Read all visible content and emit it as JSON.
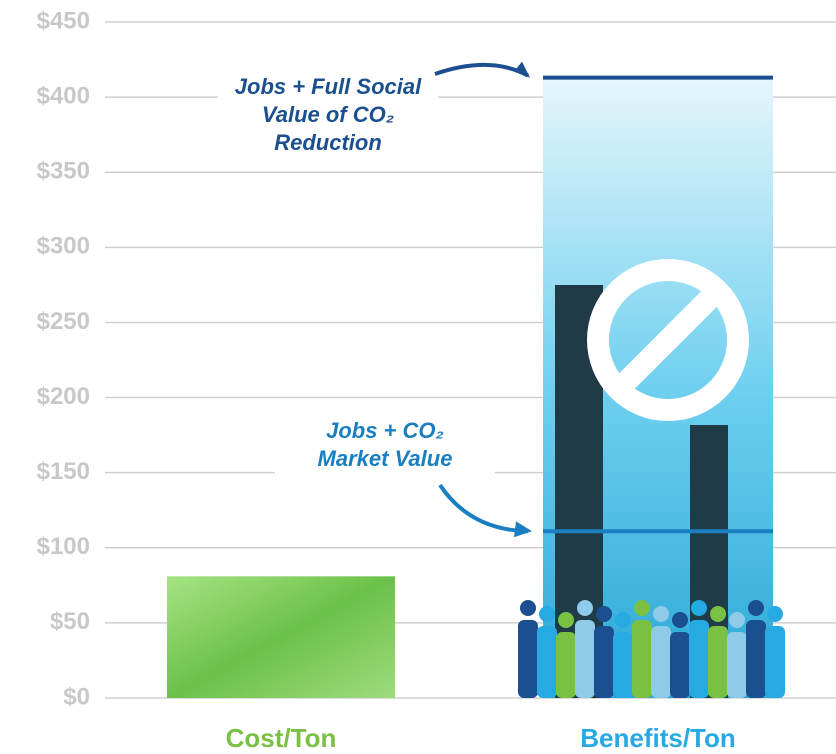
{
  "chart_data": {
    "type": "bar",
    "categories": [
      "Cost/Ton",
      "Benefits/Ton"
    ],
    "values": [
      81,
      413
    ],
    "colors": [
      "#8fd46a",
      "#4fc3e8"
    ],
    "label_colors": [
      "#7ac143",
      "#27a9e1"
    ],
    "ylim": [
      0,
      450
    ],
    "yticks": [
      {
        "value": 0,
        "label": "$0"
      },
      {
        "value": 50,
        "label": "$50"
      },
      {
        "value": 100,
        "label": "$100"
      },
      {
        "value": 150,
        "label": "$150"
      },
      {
        "value": 200,
        "label": "$200"
      },
      {
        "value": 250,
        "label": "$250"
      },
      {
        "value": 300,
        "label": "$300"
      },
      {
        "value": 350,
        "label": "$350"
      },
      {
        "value": 400,
        "label": "$400"
      },
      {
        "value": 450,
        "label": "$450"
      }
    ],
    "grid": true,
    "annotations": [
      {
        "lines": [
          "Jobs + Full Social",
          "Value of CO₂",
          "Reduction"
        ],
        "value": 413,
        "color": "#1b4f8f"
      },
      {
        "lines": [
          "Jobs + CO₂",
          "Market Value"
        ],
        "value": 111,
        "color": "#1a7fc1"
      }
    ]
  }
}
